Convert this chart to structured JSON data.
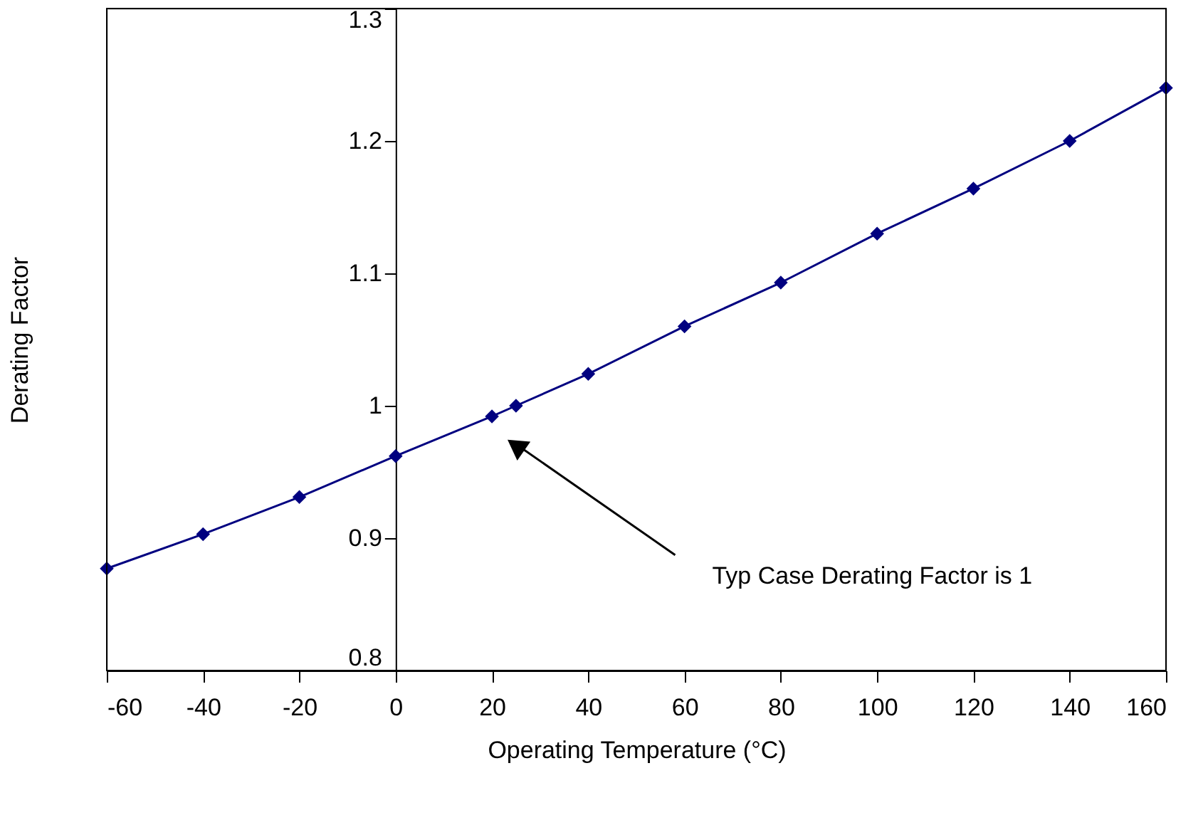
{
  "chart_data": {
    "type": "line",
    "xlabel": "Operating Temperature (°C)",
    "ylabel": "Derating Factor",
    "x": [
      -60,
      -40,
      -20,
      0,
      20,
      25,
      40,
      60,
      80,
      100,
      120,
      140,
      160
    ],
    "series": [
      {
        "color": "#000080",
        "values": [
          0.877,
          0.903,
          0.931,
          0.962,
          0.992,
          1.0,
          1.024,
          1.06,
          1.093,
          1.13,
          1.164,
          1.2,
          1.24
        ]
      }
    ],
    "xlim": [
      -60,
      160
    ],
    "xticks": [
      -60,
      -40,
      -20,
      0,
      20,
      40,
      60,
      80,
      100,
      120,
      140,
      160
    ],
    "ylim": [
      0.8,
      1.3
    ],
    "yticks": [
      0.8,
      0.9,
      1,
      1.1,
      1.2,
      1.3
    ],
    "annotations": [
      "Typ Case Derating Factor is 1"
    ],
    "marker": "diamond",
    "line_style": "solid",
    "grid": false
  }
}
